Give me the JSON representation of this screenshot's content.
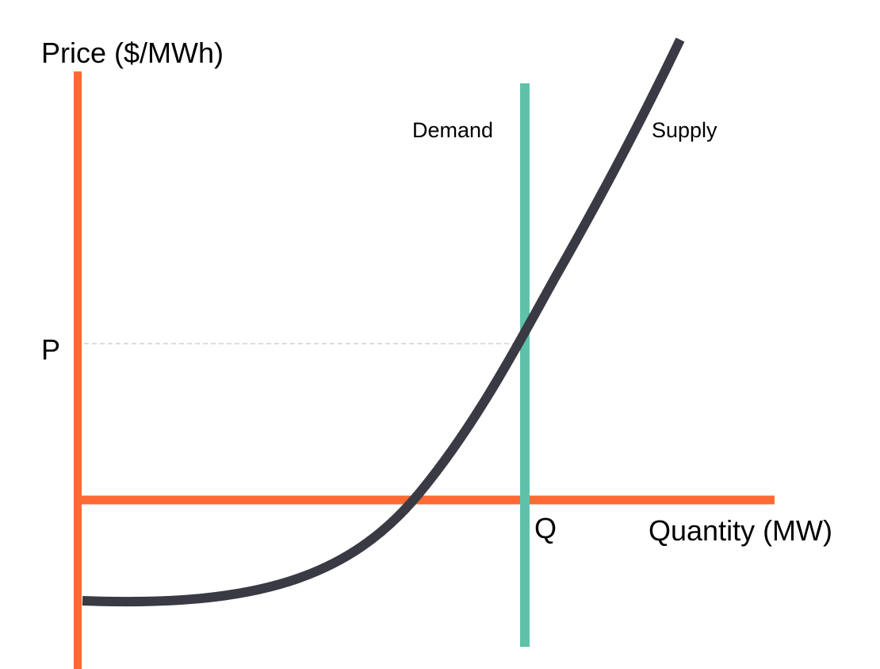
{
  "chart_data": {
    "type": "line",
    "title": "",
    "xlabel": "Quantity (MW)",
    "ylabel": "Price ($/MWh)",
    "x_tick_labels": [
      "Q"
    ],
    "y_tick_labels": [
      "P"
    ],
    "grid": false,
    "legend": "none",
    "series": [
      {
        "name": "Supply",
        "color": "#3a3a44",
        "shape": "convex rising curve, crossing the negative-price region at low quantity"
      },
      {
        "name": "Demand",
        "color": "#5ec2aa",
        "shape": "vertical line at Q (perfectly inelastic)"
      }
    ],
    "equilibrium": {
      "price_label": "P",
      "quantity_label": "Q",
      "reference_line": "dashed from P axis to intersection"
    },
    "colors": {
      "axes": "#ff6a33",
      "supply": "#3a3a44",
      "demand": "#5ec2aa",
      "guide": "#c8c8c8",
      "text": "#000000"
    }
  }
}
